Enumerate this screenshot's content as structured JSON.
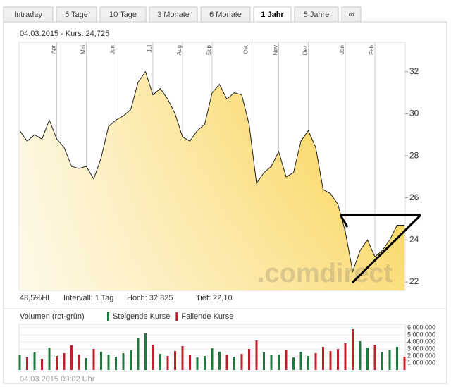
{
  "tabs": [
    "Intraday",
    "5 Tage",
    "10 Tage",
    "3 Monate",
    "6 Monate",
    "1 Jahr",
    "5 Jahre",
    "∞"
  ],
  "active_tab": 5,
  "header": "04.03.2015  -  Kurs: 24,725",
  "watermark": ".comdirect",
  "stats": [
    "48,5%HL",
    "Intervall: 1 Tag",
    "Hoch: 32,825",
    "Tief: 22,10"
  ],
  "footer": "04.03.2015 09:02 Uhr",
  "chart_data": [
    {
      "type": "area",
      "color": "#f5c518",
      "line_color": "#222222",
      "grid": "x",
      "categories": [
        null,
        null,
        null,
        null,
        null,
        "Apr",
        null,
        null,
        null,
        "Mai",
        null,
        null,
        null,
        "Jun",
        null,
        null,
        null,
        null,
        "Jul",
        null,
        null,
        null,
        "Aug",
        null,
        null,
        null,
        "Sep",
        null,
        null,
        null,
        null,
        "Okt",
        null,
        null,
        null,
        "Nov",
        null,
        null,
        null,
        "Dez",
        null,
        null,
        null,
        null,
        "Jan",
        null,
        null,
        null,
        "Feb",
        null,
        null,
        null,
        null
      ],
      "values": [
        29.2,
        28.7,
        29.0,
        28.8,
        29.7,
        28.8,
        28.4,
        27.5,
        27.4,
        27.5,
        26.9,
        27.9,
        29.4,
        29.7,
        29.9,
        30.2,
        31.5,
        32.0,
        30.9,
        31.2,
        30.7,
        30.0,
        28.9,
        28.7,
        29.2,
        29.5,
        31.0,
        31.4,
        30.7,
        31.0,
        30.9,
        29.5,
        26.7,
        27.2,
        27.5,
        28.2,
        27.0,
        27.2,
        28.7,
        29.2,
        28.4,
        26.4,
        26.2,
        25.7,
        24.4,
        22.5,
        23.5,
        24.0,
        23.2,
        23.5,
        24.0,
        24.7,
        24.7
      ],
      "ylim": [
        21.6,
        33.4
      ],
      "yticks": [
        22,
        24,
        26,
        28,
        30,
        32
      ]
    },
    {
      "type": "bar",
      "title": "Volumen (rot-grün)",
      "series": [
        {
          "name": "Steigende Kurse",
          "color": "#1e7a3c",
          "values": [
            2100000,
            null,
            2500000,
            null,
            3200000,
            null,
            null,
            null,
            null,
            1700000,
            null,
            2600000,
            2200000,
            1900000,
            2400000,
            2800000,
            4500000,
            5200000,
            null,
            2300000,
            null,
            null,
            null,
            null,
            1800000,
            2000000,
            3100000,
            2600000,
            null,
            1900000,
            null,
            null,
            null,
            2500000,
            2100000,
            2200000,
            null,
            1800000,
            2600000,
            2000000,
            null,
            null,
            null,
            null,
            null,
            null,
            4100000,
            3200000,
            null,
            2500000,
            2900000,
            3300000,
            null
          ]
        },
        {
          "name": "Fallende Kurse",
          "color": "#c0202a",
          "values": [
            null,
            1800000,
            null,
            1600000,
            null,
            2000000,
            2400000,
            3500000,
            2200000,
            null,
            3000000,
            null,
            null,
            null,
            null,
            null,
            null,
            null,
            3600000,
            null,
            2000000,
            2700000,
            3400000,
            2100000,
            null,
            null,
            null,
            null,
            2200000,
            null,
            2300000,
            3000000,
            4200000,
            null,
            null,
            null,
            2900000,
            null,
            null,
            null,
            2400000,
            3300000,
            2700000,
            3000000,
            3800000,
            5800000,
            null,
            null,
            3600000,
            null,
            null,
            null,
            1900000
          ]
        }
      ],
      "ylim": [
        0,
        6000000
      ],
      "yticks": [
        {
          "value": 6000000,
          "label": "6.000.000"
        },
        {
          "value": 5000000,
          "label": "5.000.000"
        },
        {
          "value": 4000000,
          "label": "4.000.000"
        },
        {
          "value": 3000000,
          "label": "3.000.000"
        },
        {
          "value": 2000000,
          "label": "2.000.000"
        },
        {
          "value": 1000000,
          "label": "1.000.000"
        }
      ]
    }
  ]
}
